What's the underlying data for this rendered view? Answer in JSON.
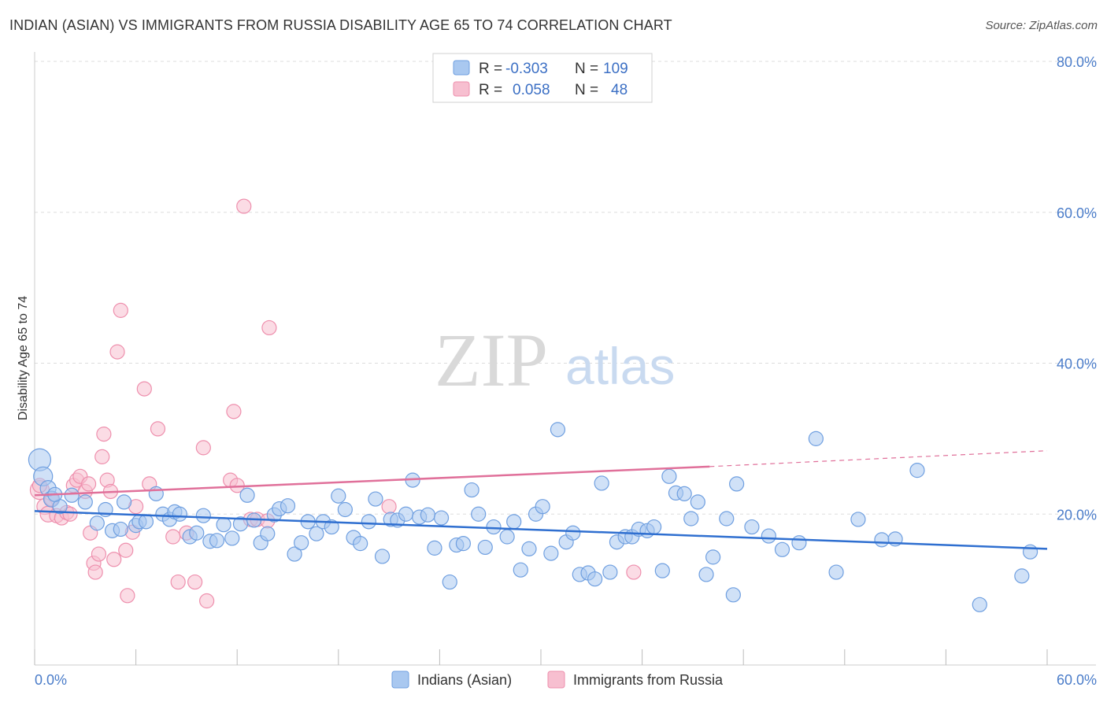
{
  "title": "INDIAN (ASIAN) VS IMMIGRANTS FROM RUSSIA DISABILITY AGE 65 TO 74 CORRELATION CHART",
  "source": "Source: ZipAtlas.com",
  "watermark": {
    "zip": "ZIP",
    "atlas": "atlas"
  },
  "colors": {
    "blue_fill": "#a9c8f0",
    "blue_stroke": "#6f9fe0",
    "blue_line": "#2f6fd0",
    "pink_fill": "#f7bfd0",
    "pink_stroke": "#ee8fad",
    "pink_line": "#e0709a",
    "grid": "#dddddd",
    "tick_text": "#4a7cc9"
  },
  "legend": {
    "rows": [
      {
        "r_label": "R =",
        "r_value": "-0.303",
        "n_label": "N =",
        "n_value": "109"
      },
      {
        "r_label": "R =",
        "r_value": "0.058",
        "n_label": "N =",
        "n_value": "48"
      }
    ]
  },
  "chart_data": {
    "type": "scatter",
    "title": "INDIAN (ASIAN) VS IMMIGRANTS FROM RUSSIA DISABILITY AGE 65 TO 74 CORRELATION CHART",
    "xlabel": "",
    "ylabel": "Disability Age 65 to 74",
    "xlim": [
      0,
      60
    ],
    "ylim": [
      0,
      80
    ],
    "x_ticks": [
      {
        "value": 0,
        "label": "0.0%"
      },
      {
        "value": 60,
        "label": "60.0%"
      }
    ],
    "y_ticks": [
      {
        "value": 20,
        "label": "20.0%"
      },
      {
        "value": 40,
        "label": "40.0%"
      },
      {
        "value": 60,
        "label": "60.0%"
      },
      {
        "value": 80,
        "label": "80.0%"
      }
    ],
    "series": [
      {
        "name": "Indians (Asian)",
        "color": "blue",
        "trend": {
          "x0": 0,
          "y0": 20.4,
          "x1": 60,
          "y1": 15.4
        },
        "points": [
          [
            0.3,
            27.2,
            14
          ],
          [
            0.5,
            25.0,
            12
          ],
          [
            0.8,
            23.4,
            10
          ],
          [
            1.0,
            22.0,
            10
          ],
          [
            1.5,
            21.0,
            9
          ],
          [
            1.2,
            22.6,
            9
          ],
          [
            2.2,
            22.5,
            9
          ],
          [
            3.0,
            21.6,
            9
          ],
          [
            3.7,
            18.8,
            9
          ],
          [
            4.2,
            20.6,
            9
          ],
          [
            4.6,
            17.8,
            9
          ],
          [
            5.1,
            18.0,
            9
          ],
          [
            5.3,
            21.6,
            9
          ],
          [
            6.0,
            18.5,
            9
          ],
          [
            6.2,
            19.0,
            9
          ],
          [
            6.6,
            19.0,
            9
          ],
          [
            7.2,
            22.7,
            9
          ],
          [
            7.6,
            20.0,
            9
          ],
          [
            8.0,
            19.3,
            9
          ],
          [
            8.3,
            20.3,
            9
          ],
          [
            8.6,
            20.0,
            9
          ],
          [
            9.2,
            17.0,
            9
          ],
          [
            9.6,
            17.5,
            9
          ],
          [
            10.0,
            19.8,
            9
          ],
          [
            10.4,
            16.4,
            9
          ],
          [
            10.8,
            16.5,
            9
          ],
          [
            11.2,
            18.6,
            9
          ],
          [
            11.7,
            16.8,
            9
          ],
          [
            12.2,
            18.7,
            9
          ],
          [
            12.6,
            22.5,
            9
          ],
          [
            13.0,
            19.2,
            9
          ],
          [
            13.4,
            16.2,
            9
          ],
          [
            13.8,
            17.4,
            9
          ],
          [
            14.2,
            19.9,
            9
          ],
          [
            14.5,
            20.7,
            9
          ],
          [
            15.0,
            21.1,
            9
          ],
          [
            15.4,
            14.7,
            9
          ],
          [
            15.8,
            16.2,
            9
          ],
          [
            16.2,
            19.0,
            9
          ],
          [
            16.7,
            17.4,
            9
          ],
          [
            17.1,
            19.0,
            9
          ],
          [
            17.6,
            18.3,
            9
          ],
          [
            18.0,
            22.4,
            9
          ],
          [
            18.4,
            20.6,
            9
          ],
          [
            18.9,
            16.9,
            9
          ],
          [
            19.3,
            16.1,
            9
          ],
          [
            19.8,
            19.0,
            9
          ],
          [
            20.2,
            22.0,
            9
          ],
          [
            20.6,
            14.4,
            9
          ],
          [
            21.1,
            19.3,
            9
          ],
          [
            21.5,
            19.2,
            9
          ],
          [
            22.0,
            20.0,
            9
          ],
          [
            22.4,
            24.5,
            9
          ],
          [
            22.8,
            19.6,
            9
          ],
          [
            23.3,
            19.9,
            9
          ],
          [
            23.7,
            15.5,
            9
          ],
          [
            24.1,
            19.5,
            9
          ],
          [
            24.6,
            11.0,
            9
          ],
          [
            25.0,
            15.9,
            9
          ],
          [
            25.4,
            16.1,
            9
          ],
          [
            25.9,
            23.2,
            9
          ],
          [
            26.3,
            20.0,
            9
          ],
          [
            26.7,
            15.6,
            9
          ],
          [
            27.2,
            18.3,
            9
          ],
          [
            28.0,
            17.0,
            9
          ],
          [
            28.4,
            19.0,
            9
          ],
          [
            28.8,
            12.6,
            9
          ],
          [
            29.3,
            15.4,
            9
          ],
          [
            29.7,
            20.0,
            9
          ],
          [
            30.1,
            21.0,
            9
          ],
          [
            30.6,
            14.8,
            9
          ],
          [
            31.0,
            31.2,
            9
          ],
          [
            31.5,
            16.3,
            9
          ],
          [
            31.9,
            17.5,
            9
          ],
          [
            32.3,
            12.0,
            9
          ],
          [
            32.8,
            12.2,
            9
          ],
          [
            33.2,
            11.4,
            9
          ],
          [
            33.6,
            24.1,
            9
          ],
          [
            34.1,
            12.3,
            9
          ],
          [
            34.5,
            16.3,
            9
          ],
          [
            35.0,
            17.0,
            9
          ],
          [
            35.4,
            17.0,
            9
          ],
          [
            35.8,
            18.0,
            9
          ],
          [
            36.3,
            17.8,
            9
          ],
          [
            36.7,
            18.3,
            9
          ],
          [
            37.2,
            12.5,
            9
          ],
          [
            37.6,
            25.0,
            9
          ],
          [
            38.0,
            22.8,
            9
          ],
          [
            38.5,
            22.7,
            9
          ],
          [
            38.9,
            19.4,
            9
          ],
          [
            39.3,
            21.6,
            9
          ],
          [
            39.8,
            12.0,
            9
          ],
          [
            40.2,
            14.3,
            9
          ],
          [
            41.0,
            19.4,
            9
          ],
          [
            41.6,
            24.0,
            9
          ],
          [
            42.5,
            18.3,
            9
          ],
          [
            43.5,
            17.1,
            9
          ],
          [
            44.3,
            15.3,
            9
          ],
          [
            45.3,
            16.2,
            9
          ],
          [
            46.3,
            30.0,
            9
          ],
          [
            47.5,
            12.3,
            9
          ],
          [
            48.8,
            19.3,
            9
          ],
          [
            50.2,
            16.6,
            9
          ],
          [
            51.0,
            16.7,
            9
          ],
          [
            52.3,
            25.8,
            9
          ],
          [
            56.0,
            8.0,
            9
          ],
          [
            58.5,
            11.8,
            9
          ],
          [
            59.0,
            15.0,
            9
          ],
          [
            41.4,
            9.3,
            9
          ]
        ]
      },
      {
        "name": "Immigrants from Russia",
        "color": "pink",
        "trend": {
          "x0": 0,
          "y0": 22.5,
          "x1": 40,
          "y1": 26.3,
          "dash_x1": 60,
          "dash_y1": 28.4
        },
        "points": [
          [
            0.3,
            23.2,
            12
          ],
          [
            0.6,
            21.0,
            10
          ],
          [
            0.8,
            20.0,
            10
          ],
          [
            1.0,
            22.0,
            9
          ],
          [
            1.3,
            19.8,
            9
          ],
          [
            1.6,
            19.5,
            9
          ],
          [
            1.9,
            20.2,
            9
          ],
          [
            2.1,
            20.0,
            9
          ],
          [
            2.3,
            23.8,
            9
          ],
          [
            2.5,
            24.5,
            9
          ],
          [
            2.7,
            25.0,
            9
          ],
          [
            3.0,
            23.0,
            9
          ],
          [
            3.2,
            24.0,
            9
          ],
          [
            3.5,
            13.5,
            9
          ],
          [
            3.6,
            12.3,
            9
          ],
          [
            3.8,
            14.7,
            9
          ],
          [
            3.3,
            17.5,
            9
          ],
          [
            4.0,
            27.6,
            9
          ],
          [
            4.1,
            30.6,
            9
          ],
          [
            4.3,
            24.5,
            9
          ],
          [
            4.5,
            23.0,
            9
          ],
          [
            4.7,
            14.0,
            9
          ],
          [
            4.9,
            41.5,
            9
          ],
          [
            5.1,
            47.0,
            9
          ],
          [
            5.4,
            15.2,
            9
          ],
          [
            5.5,
            9.2,
            9
          ],
          [
            5.8,
            17.6,
            9
          ],
          [
            6.0,
            21.0,
            9
          ],
          [
            6.5,
            36.6,
            9
          ],
          [
            6.8,
            24.0,
            9
          ],
          [
            7.3,
            31.3,
            9
          ],
          [
            8.2,
            17.0,
            9
          ],
          [
            8.5,
            11.0,
            9
          ],
          [
            9.0,
            17.5,
            9
          ],
          [
            9.5,
            11.0,
            9
          ],
          [
            10.0,
            28.8,
            9
          ],
          [
            10.2,
            8.5,
            9
          ],
          [
            11.6,
            24.5,
            9
          ],
          [
            11.8,
            33.6,
            9
          ],
          [
            12.0,
            23.8,
            9
          ],
          [
            12.4,
            60.8,
            9
          ],
          [
            12.8,
            19.3,
            9
          ],
          [
            13.2,
            19.3,
            9
          ],
          [
            13.8,
            19.1,
            9
          ],
          [
            13.9,
            44.7,
            9
          ],
          [
            21.0,
            21.0,
            9
          ],
          [
            35.5,
            12.3,
            9
          ],
          [
            0.3,
            23.8,
            9
          ]
        ]
      }
    ],
    "legend_position": "top-center",
    "grid": true
  },
  "bottom_legend": [
    {
      "label": "Indians (Asian)"
    },
    {
      "label": "Immigrants from Russia"
    }
  ]
}
